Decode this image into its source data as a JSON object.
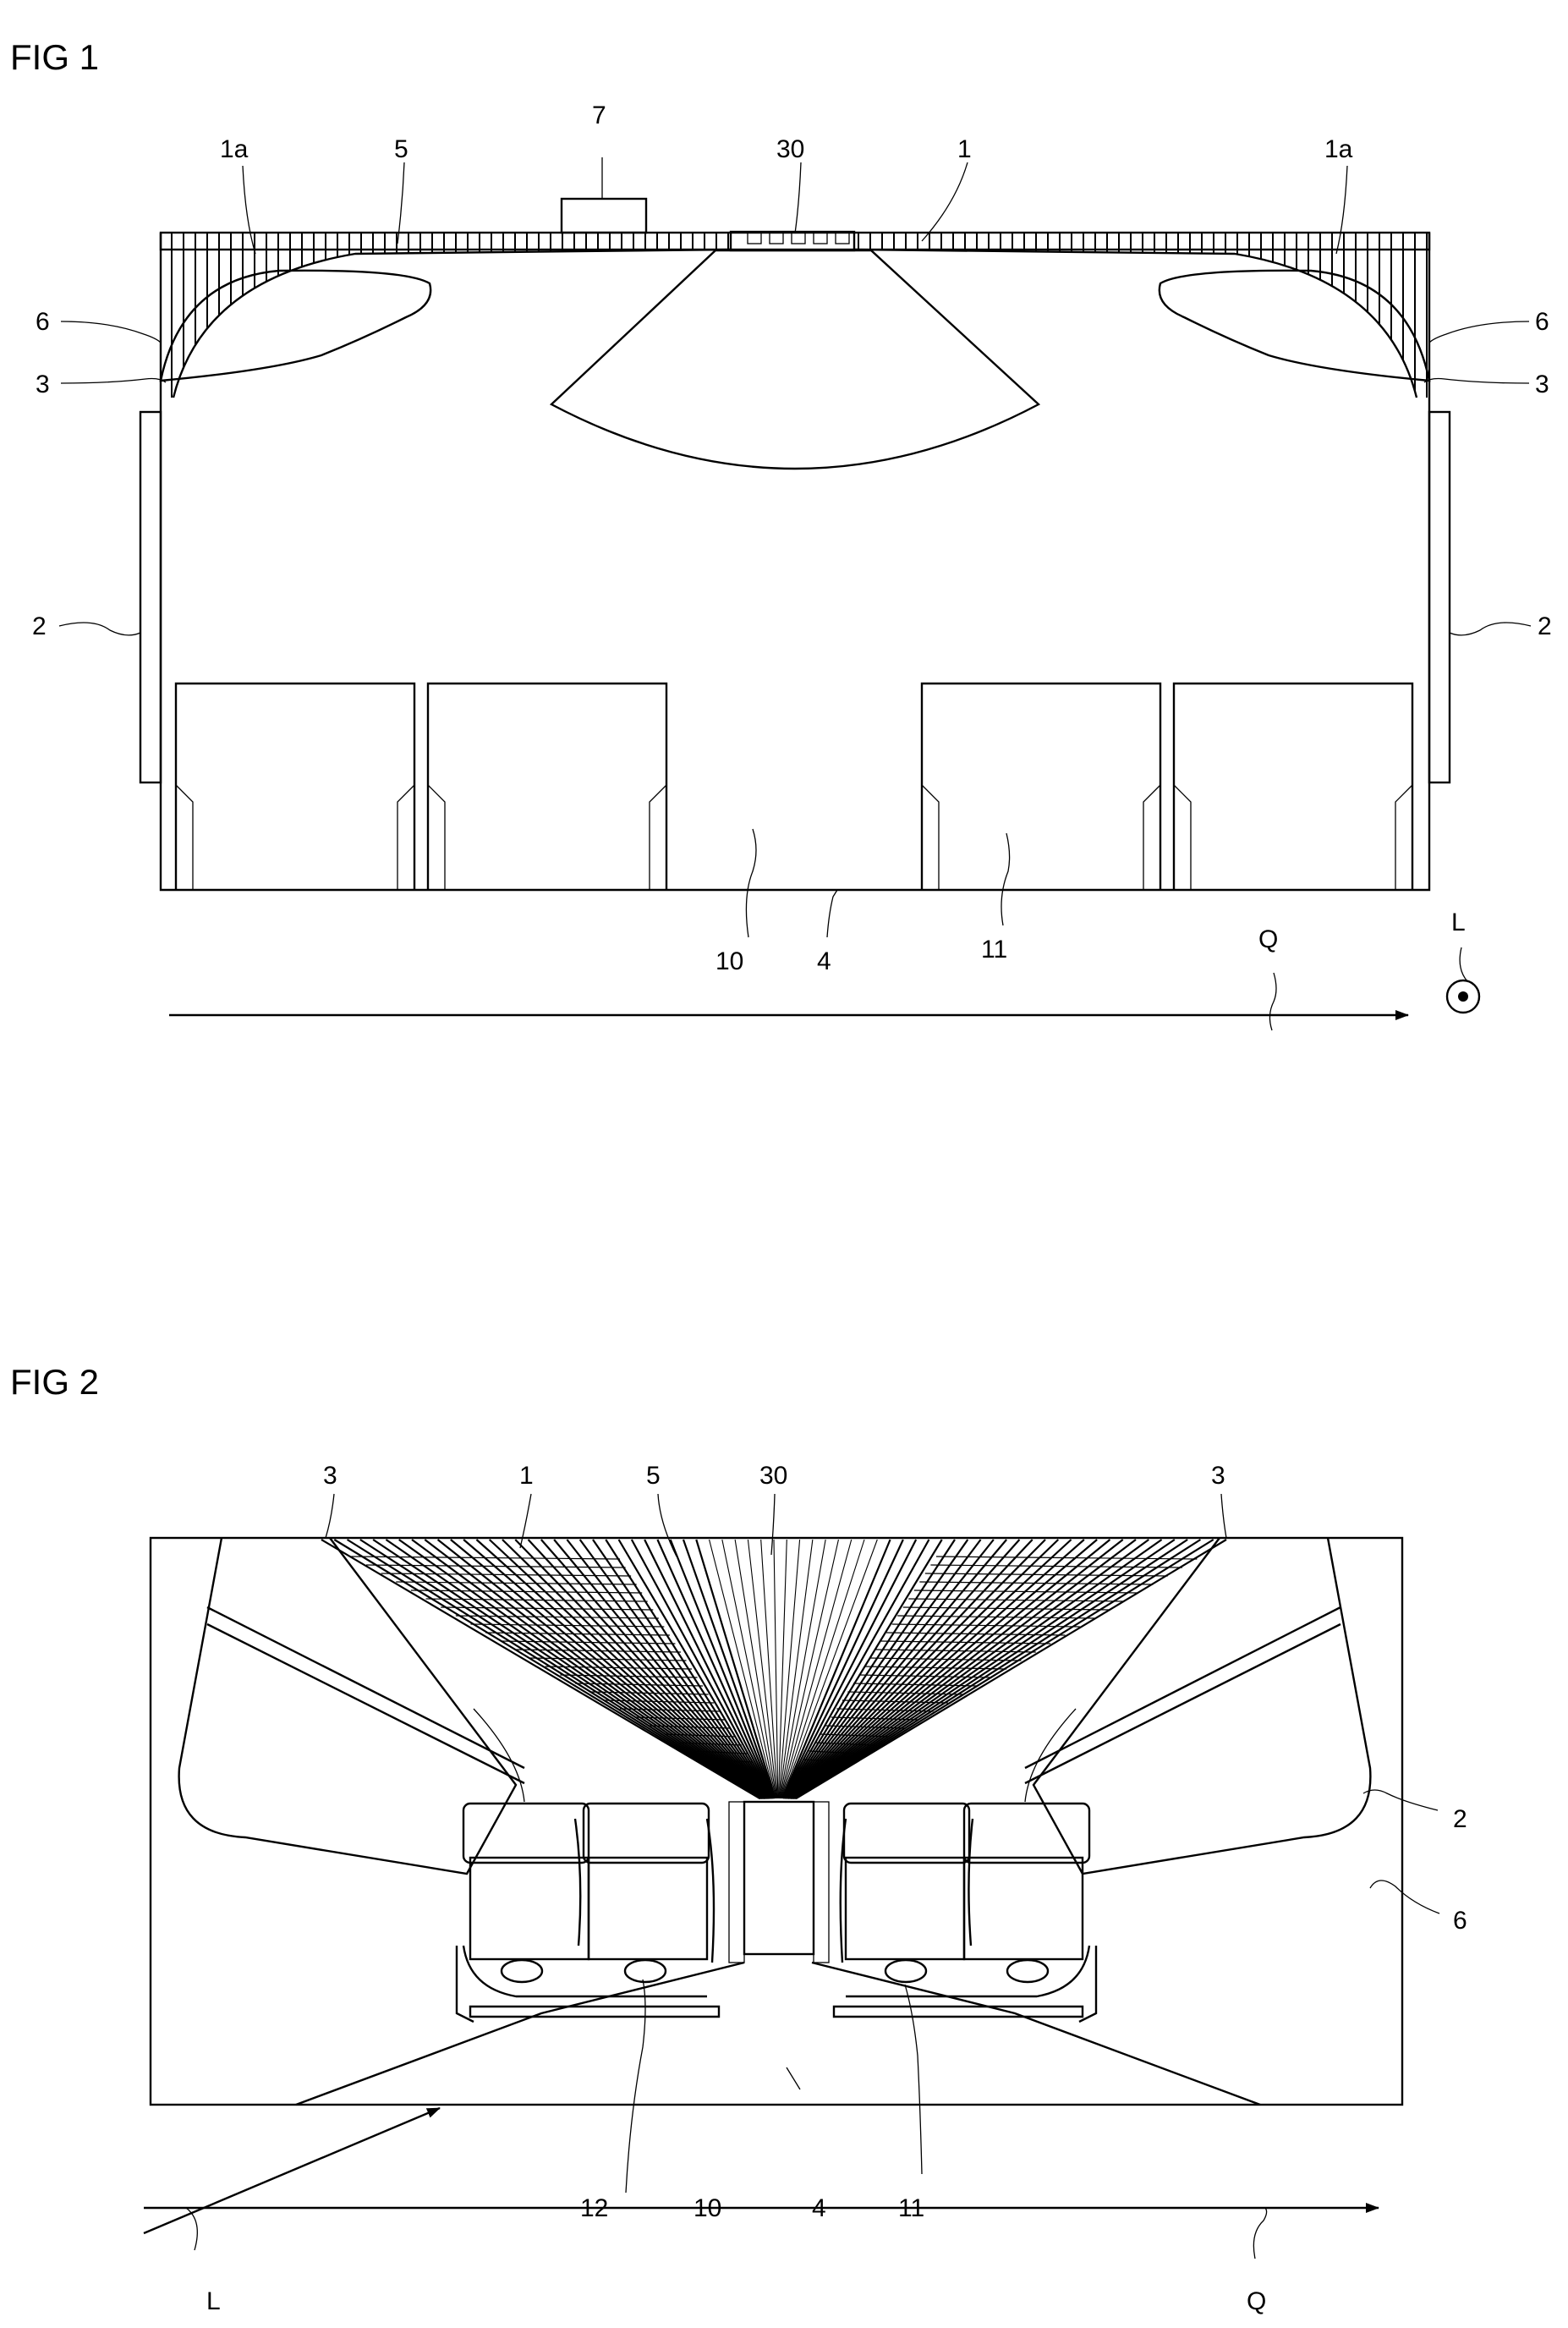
{
  "figures": [
    {
      "title": "FIG 1",
      "labels": {
        "one_a_left": "1a",
        "five": "5",
        "seven": "7",
        "thirty": "30",
        "one": "1",
        "one_a_right": "1a",
        "six_left": "6",
        "six_right": "6",
        "three_left": "3",
        "three_right": "3",
        "two_left": "2",
        "two_right": "2",
        "ten": "10",
        "four": "4",
        "eleven": "11",
        "q": "Q",
        "l": "L"
      }
    },
    {
      "title": "FIG 2",
      "labels": {
        "three_left": "3",
        "one": "1",
        "five": "5",
        "thirty": "30",
        "three_right": "3",
        "two": "2",
        "six": "6",
        "twelve": "12",
        "ten": "10",
        "four": "4",
        "eleven": "11",
        "l": "L",
        "q": "Q"
      }
    }
  ]
}
